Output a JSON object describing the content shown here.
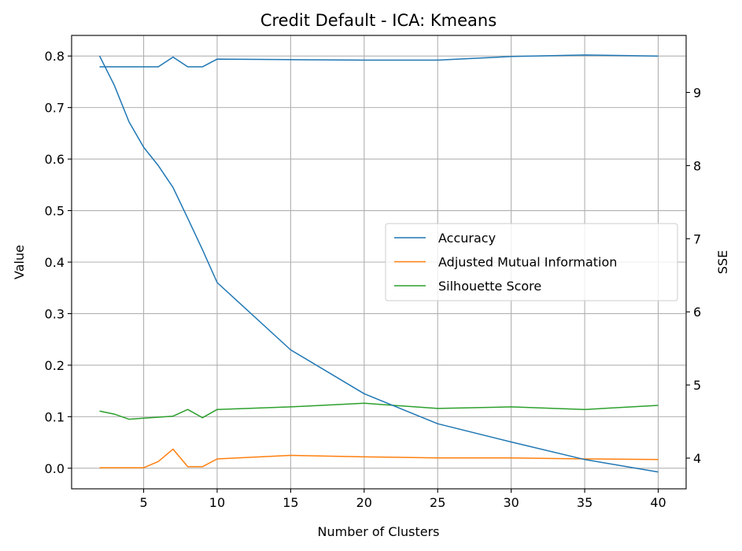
{
  "chart_data": {
    "type": "line",
    "title": "Credit Default - ICA: Kmeans",
    "xlabel": "Number of Clusters",
    "ylabel": "Value",
    "ylabel_right": "SSE",
    "xlim": [
      0.1,
      41.9
    ],
    "ylim": [
      -0.04,
      0.84
    ],
    "ylim_right": [
      3.58,
      9.78
    ],
    "xticks": [
      5,
      10,
      15,
      20,
      25,
      30,
      35,
      40
    ],
    "yticks": [
      0.0,
      0.1,
      0.2,
      0.3,
      0.4,
      0.5,
      0.6,
      0.7,
      0.8
    ],
    "yticks_right": [
      4,
      5,
      6,
      7,
      8,
      9
    ],
    "grid": true,
    "legend_position": "center-right",
    "x": [
      2,
      3,
      4,
      5,
      6,
      7,
      8,
      9,
      10,
      15,
      20,
      25,
      30,
      35,
      40
    ],
    "series": [
      {
        "name": "Accuracy",
        "color": "#1f77b4",
        "axis": "left",
        "values": [
          0.779,
          0.779,
          0.779,
          0.779,
          0.779,
          0.798,
          0.779,
          0.779,
          0.794,
          0.793,
          0.792,
          0.792,
          0.799,
          0.802,
          0.8
        ]
      },
      {
        "name": "Adjusted Mutual Information",
        "color": "#ff7f0e",
        "axis": "left",
        "values": [
          0.001,
          0.001,
          0.001,
          0.001,
          0.013,
          0.037,
          0.003,
          0.003,
          0.018,
          0.025,
          0.022,
          0.02,
          0.02,
          0.018,
          0.017
        ]
      },
      {
        "name": "Silhouette Score",
        "color": "#2ca02c",
        "axis": "left",
        "values": [
          0.111,
          0.105,
          0.095,
          0.097,
          0.099,
          0.101,
          0.114,
          0.098,
          0.114,
          0.119,
          0.126,
          0.116,
          0.119,
          0.114,
          0.122
        ]
      },
      {
        "color": "#1f77b4",
        "axis": "right",
        "values": [
          9.5,
          9.1,
          8.6,
          8.25,
          8.0,
          7.7,
          7.28,
          6.85,
          6.4,
          5.48,
          4.88,
          4.47,
          4.22,
          3.98,
          3.81
        ]
      }
    ]
  }
}
